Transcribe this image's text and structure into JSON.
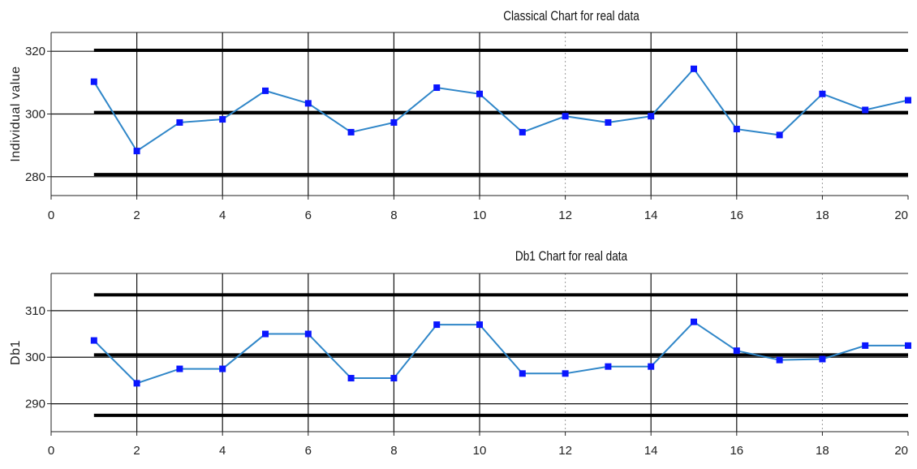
{
  "chart_data": [
    {
      "type": "line",
      "title": "Classical Chart for real data",
      "xlabel": "",
      "ylabel": "Individual value",
      "xlim": [
        0,
        20
      ],
      "ylim": [
        274,
        326
      ],
      "xticks": [
        0,
        2,
        4,
        6,
        8,
        10,
        12,
        14,
        16,
        18,
        20
      ],
      "yticks": [
        280,
        300,
        320
      ],
      "grid": "vertical lines at even x values",
      "control_limits": {
        "ucl": 320.3,
        "center": 300.5,
        "lcl": 280.7
      },
      "series": [
        {
          "color": "#2f86c8",
          "marker_color": "#0a16ff",
          "x": [
            1,
            2,
            3,
            4,
            5,
            6,
            7,
            8,
            9,
            10,
            11,
            12,
            13,
            14,
            15,
            16,
            17,
            18,
            19,
            20
          ],
          "values": [
            310.3,
            288.2,
            297.3,
            298.3,
            307.4,
            303.4,
            294.2,
            297.3,
            308.4,
            306.4,
            294.2,
            299.3,
            297.3,
            299.3,
            314.4,
            295.2,
            293.3,
            306.4,
            301.3,
            304.4
          ]
        }
      ]
    },
    {
      "type": "line",
      "title": "Db1 Chart for real data",
      "xlabel": "",
      "ylabel": "Db1",
      "xlim": [
        0,
        20
      ],
      "ylim": [
        284,
        318
      ],
      "xticks": [
        0,
        2,
        4,
        6,
        8,
        10,
        12,
        14,
        16,
        18,
        20
      ],
      "yticks": [
        290,
        300,
        310
      ],
      "grid": "vertical lines at even x values",
      "control_limits": {
        "ucl": 313.4,
        "center": 300.5,
        "lcl": 287.5
      },
      "series": [
        {
          "color": "#2f86c8",
          "marker_color": "#0a16ff",
          "x": [
            1,
            2,
            3,
            4,
            5,
            6,
            7,
            8,
            9,
            10,
            11,
            12,
            13,
            14,
            15,
            16,
            17,
            18,
            19,
            20
          ],
          "values": [
            303.6,
            294.4,
            297.5,
            297.5,
            305.0,
            305.0,
            295.5,
            295.5,
            307.0,
            307.0,
            296.5,
            296.5,
            298.0,
            298.0,
            307.6,
            301.4,
            299.4,
            299.6,
            302.5,
            302.5
          ]
        }
      ]
    }
  ]
}
